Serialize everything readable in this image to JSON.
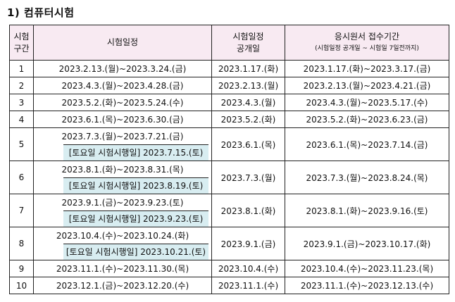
{
  "title": "1) 컴퓨터시험",
  "headers": {
    "round": "시험\n구간",
    "exam_period": "시험일정",
    "open_date": "시험일정\n공개일",
    "reg_period": "응시원서 접수기간",
    "reg_note": "(시험일정 공개일 ~ 시험일 7일전까지)"
  },
  "rows": [
    {
      "no": "1",
      "exam": "2023.2.13.(월)~2023.3.24.(금)",
      "open": "2023.1.17.(화)",
      "reg": "2023.1.17.(화)~2023.3.17.(금)"
    },
    {
      "no": "2",
      "exam": "2023.4.3.(월)~2023.4.28.(금)",
      "open": "2023.2.13.(월)",
      "reg": "2023.2.13.(월)~2023.4.21.(금)"
    },
    {
      "no": "3",
      "exam": "2023.5.2.(화)~2023.5.24.(수)",
      "open": "2023.4.3.(월)",
      "reg": "2023.4.3.(월)~2023.5.17.(수)"
    },
    {
      "no": "4",
      "exam": "2023.6.1.(목)~2023.6.30.(금)",
      "open": "2023.5.2.(화)",
      "reg": "2023.5.2.(화)~2023.6.23.(금)"
    },
    {
      "no": "5",
      "exam": "2023.7.3.(월)~2023.7.21.(금)",
      "sat": "[토요일 시험시행일] 2023.7.15.(토)",
      "open": "2023.6.1.(목)",
      "reg": "2023.6.1.(목)~2023.7.14.(금)"
    },
    {
      "no": "6",
      "exam": "2023.8.1.(화)~2023.8.31.(목)",
      "sat": "[토요일 시험시행일] 2023.8.19.(토)",
      "open": "2023.7.3.(월)",
      "reg": "2023.7.3.(월)~2023.8.24.(목)"
    },
    {
      "no": "7",
      "exam": "2023.9.1.(금)~2023.9.23.(토)",
      "sat": "[토요일 시험시행일] 2023.9.23.(토)",
      "open": "2023.8.1.(화)",
      "reg": "2023.8.1.(화)~2023.9.16.(토)"
    },
    {
      "no": "8",
      "exam": "2023.10.4.(수)~2023.10.24.(화)",
      "sat": "[토요일 시험시행일] 2023.10.21.(토)",
      "open": "2023.9.1.(금)",
      "reg": "2023.9.1.(금)~2023.10.17.(화)"
    },
    {
      "no": "9",
      "exam": "2023.11.1.(수)~2023.11.30.(목)",
      "open": "2023.10.4.(수)",
      "reg": "2023.10.4.(수)~2023.11.23.(목)"
    },
    {
      "no": "10",
      "exam": "2023.12.1.(금)~2023.12.20.(수)",
      "open": "2023.11.1.(수)",
      "reg": "2023.11.1.(수)~2023.12.13.(수)"
    }
  ]
}
